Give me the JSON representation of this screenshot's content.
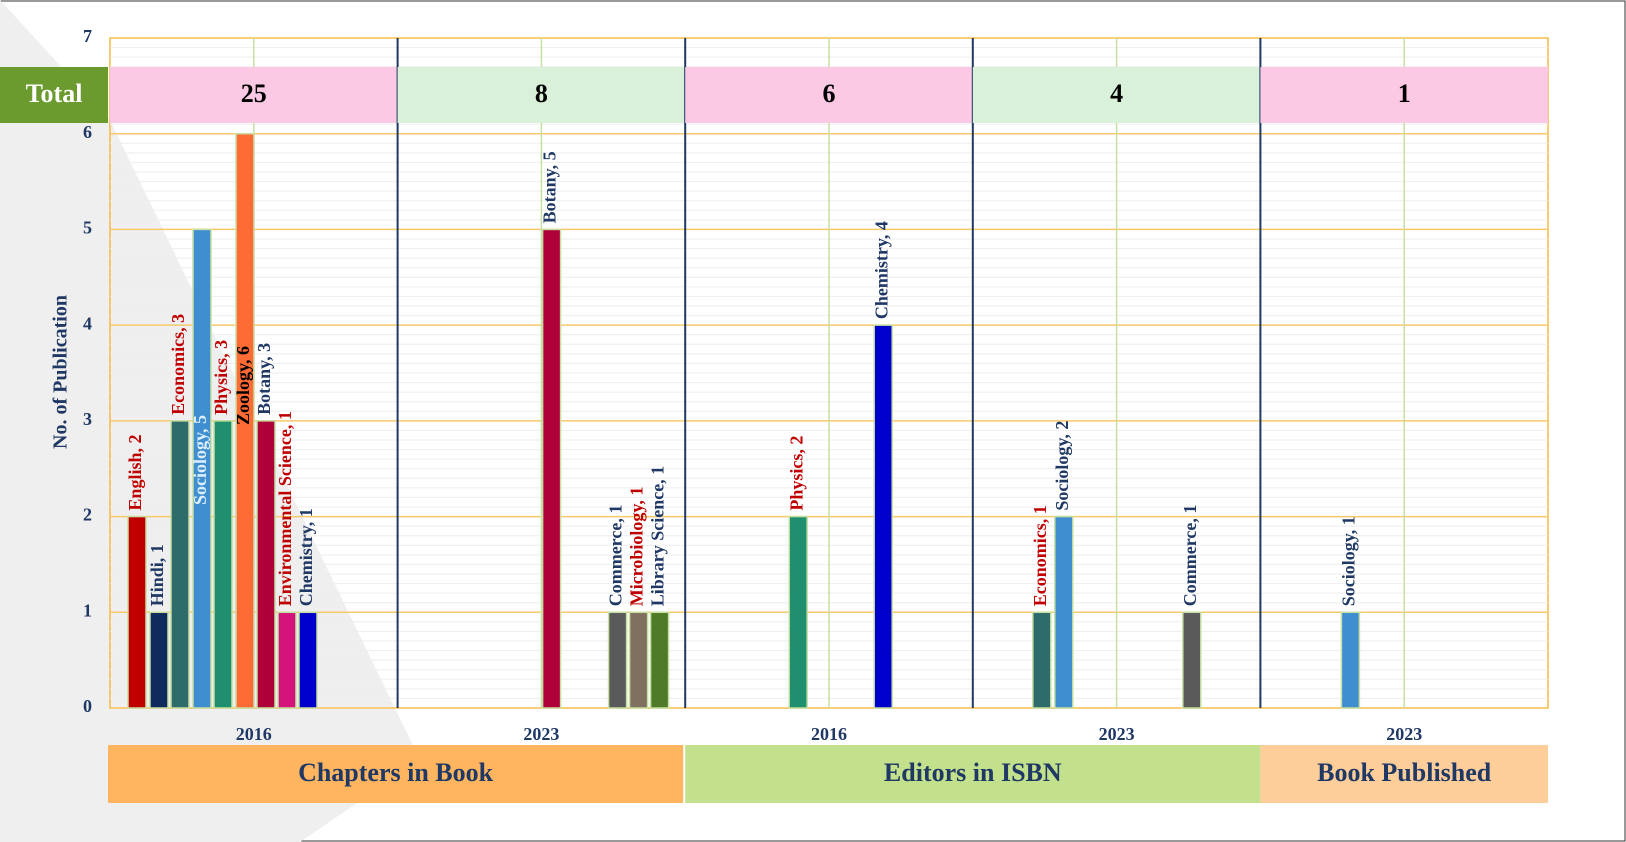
{
  "chart_data": {
    "type": "bar",
    "y_label": "No. of Publication",
    "ylim": [
      0,
      7
    ],
    "yticks": [
      0,
      1,
      2,
      3,
      4,
      5,
      6,
      7
    ],
    "grid": true,
    "total_label": "Total",
    "groups": [
      {
        "name": "Chapters in Book",
        "color": "#ffb55f"
      },
      {
        "name": "Editors in ISBN",
        "color": "#c3e08d"
      },
      {
        "name": "Book Published",
        "color": "#fdcd9a"
      }
    ],
    "panels": [
      {
        "year": "2016",
        "total": 25,
        "values": [
          2,
          1,
          3,
          5,
          3,
          6,
          3,
          1,
          1
        ],
        "value_labels": [
          "English, 2",
          "Hindi, 1",
          "Economics, 3",
          "Sociology, 5",
          "Physics, 3",
          "Zoology, 6",
          "Botany, 3",
          "Environmental Science, 1",
          "Chemistry, 1"
        ],
        "colors": [
          "#c00000",
          "#0f2a5c",
          "#2e6b6b",
          "#3f8fd0",
          "#1f8f6f",
          "#ff6b35",
          "#b0003a",
          "#d4147a",
          "#0000cc"
        ],
        "label_colors": [
          "#c00000",
          "#1f3864",
          "#c00000",
          "#ddeeff",
          "#c00000",
          "#000000",
          "#1f3864",
          "#c00000",
          "#1f3864"
        ]
      },
      {
        "year": "2023",
        "total": 8,
        "values": [
          5,
          1,
          1,
          1
        ],
        "value_labels": [
          "Botany, 5",
          "Commerce, 1",
          "Microbiology, 1",
          "Library Science, 1"
        ],
        "colors": [
          "#b0003a",
          "#5a5a5a",
          "#7f7060",
          "#4f7a28"
        ],
        "label_colors": [
          "#1f3864",
          "#1f3864",
          "#c00000",
          "#1f3864"
        ]
      },
      {
        "year": "2016",
        "total": 6,
        "values": [
          2,
          4
        ],
        "value_labels": [
          "Physics, 2",
          "Chemistry, 4"
        ],
        "colors": [
          "#1f8f6f",
          "#0000cc"
        ],
        "label_colors": [
          "#c00000",
          "#1f3864"
        ]
      },
      {
        "year": "2023",
        "total": 4,
        "values": [
          1,
          2,
          1
        ],
        "value_labels": [
          "Economics, 1",
          "Sociology, 2",
          "Commerce, 1"
        ],
        "colors": [
          "#2e6b6b",
          "#3f8fd0",
          "#5a5a5a"
        ],
        "label_colors": [
          "#c00000",
          "#1f3864",
          "#1f3864"
        ]
      },
      {
        "year": "2023",
        "total": 1,
        "values": [
          1
        ],
        "value_labels": [
          "Sociology, 1"
        ],
        "colors": [
          "#3f8fd0"
        ],
        "label_colors": [
          "#1f3864"
        ]
      }
    ]
  }
}
